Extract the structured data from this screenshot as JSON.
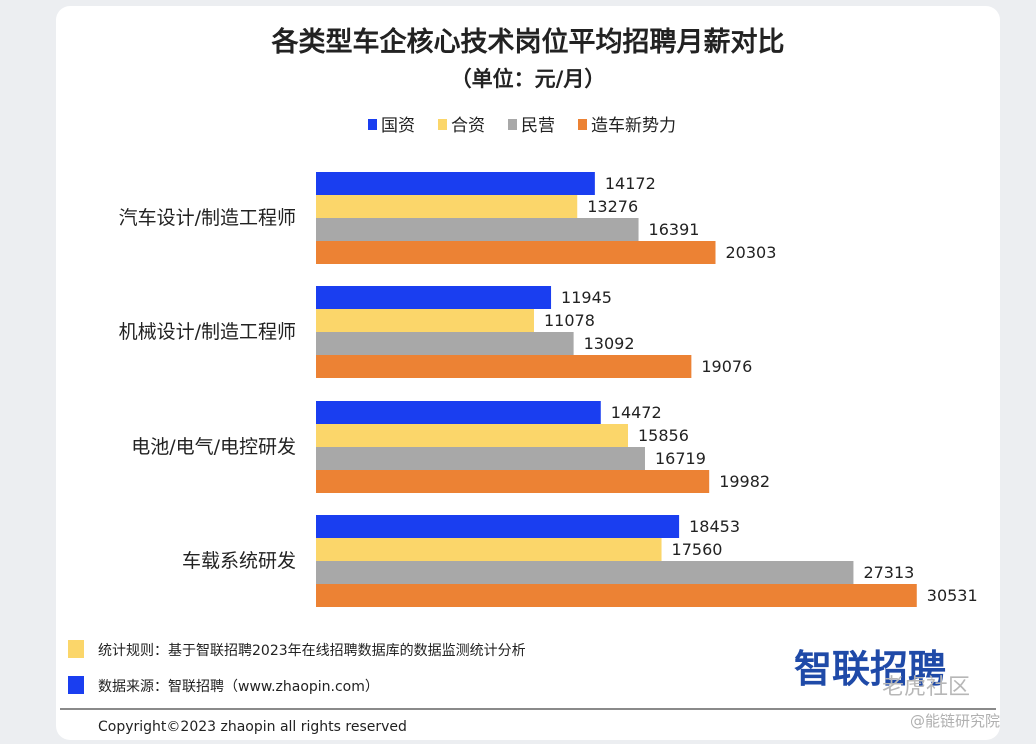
{
  "chart_data": {
    "type": "bar",
    "orientation": "horizontal",
    "title": "各类型车企核心技术岗位平均招聘月薪对比",
    "subtitle": "（单位：元/月）",
    "categories": [
      "汽车设计/制造工程师",
      "机械设计/制造工程师",
      "电池/电气/电控研发",
      "车载系统研发"
    ],
    "series": [
      {
        "name": "国资",
        "color": "#1a3ef0",
        "values": [
          14172,
          11945,
          14472,
          18453
        ]
      },
      {
        "name": "合资",
        "color": "#fbd66a",
        "values": [
          13276,
          11078,
          15856,
          17560
        ]
      },
      {
        "name": "民营",
        "color": "#a8a8a8",
        "values": [
          16391,
          13092,
          16719,
          27313
        ]
      },
      {
        "name": "造车新势力",
        "color": "#ec8234",
        "values": [
          20303,
          19076,
          19982,
          30531
        ]
      }
    ],
    "xlim": [
      0,
      31000
    ],
    "legend": "top",
    "grid": false
  },
  "footer": {
    "rule_text": "统计规则：基于智联招聘2023年在线招聘数据库的数据监测统计分析",
    "source_text": "数据来源：智联招聘（www.zhaopin.com）",
    "copyright": "Copyright©2023 zhaopin all rights reserved",
    "rule_color": "#fbd66a",
    "source_color": "#1a3ef0"
  },
  "logo": "智联招聘",
  "watermark": {
    "main": "老虎社区",
    "sub": "@能链研究院"
  }
}
